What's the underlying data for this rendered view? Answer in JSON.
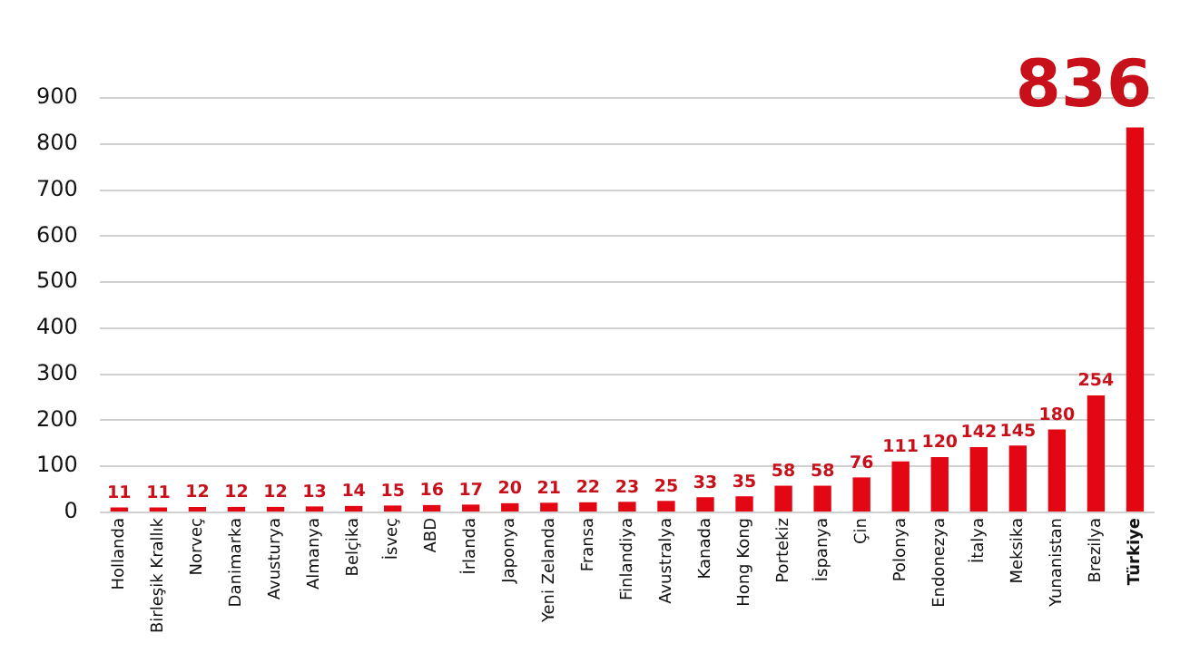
{
  "chart_data": {
    "type": "bar",
    "categories": [
      "Hollanda",
      "Birleşik Krallık",
      "Norveç",
      "Danimarka",
      "Avusturya",
      "Almanya",
      "Belçika",
      "İsveç",
      "ABD",
      "İrlanda",
      "Japonya",
      "Yeni Zelanda",
      "Fransa",
      "Finlandiya",
      "Avustralya",
      "Kanada",
      "Hong Kong",
      "Portekiz",
      "İspanya",
      "Çin",
      "Polonya",
      "Endonezya",
      "İtalya",
      "Meksika",
      "Yunanistan",
      "Brezilya",
      "Türkiye"
    ],
    "values": [
      11,
      11,
      12,
      12,
      12,
      13,
      14,
      15,
      16,
      17,
      20,
      21,
      22,
      23,
      25,
      33,
      35,
      58,
      58,
      76,
      111,
      120,
      142,
      145,
      180,
      254,
      836
    ],
    "color": "#e30613",
    "ylim": [
      0,
      900
    ],
    "yticks": [
      0,
      100,
      200,
      300,
      400,
      500,
      600,
      700,
      800,
      900
    ],
    "grid": "y",
    "data_labels": true,
    "legend": false
  }
}
